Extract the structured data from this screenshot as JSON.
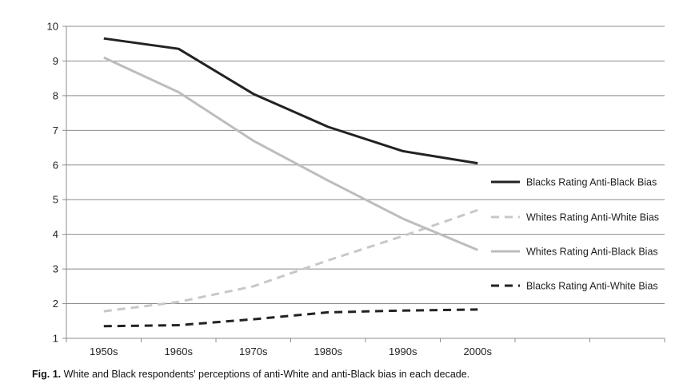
{
  "chart_data": {
    "type": "line",
    "categories": [
      "1950s",
      "1960s",
      "1970s",
      "1980s",
      "1990s",
      "2000s"
    ],
    "extra_x_slots": 2,
    "ylim": [
      1,
      10
    ],
    "yticks": [
      "1",
      "2",
      "3",
      "4",
      "5",
      "6",
      "7",
      "8",
      "9",
      "10"
    ],
    "grid": true,
    "legend_position": "right",
    "series": [
      {
        "name": "Blacks Rating Anti-Black Bias",
        "values": [
          9.65,
          9.35,
          8.05,
          7.1,
          6.4,
          6.05
        ],
        "color": "#222222",
        "dashed": false
      },
      {
        "name": "Whites Rating Anti-White Bias",
        "values": [
          1.78,
          2.05,
          2.5,
          3.25,
          3.95,
          4.7
        ],
        "color": "#c8c8c8",
        "dashed": true
      },
      {
        "name": "Whites Rating Anti-Black Bias",
        "values": [
          9.1,
          8.1,
          6.7,
          5.55,
          4.45,
          3.55
        ],
        "color": "#bdbdbd",
        "dashed": false
      },
      {
        "name": "Blacks Rating Anti-White Bias",
        "values": [
          1.35,
          1.38,
          1.55,
          1.75,
          1.8,
          1.83
        ],
        "color": "#222222",
        "dashed": true
      }
    ]
  },
  "caption": {
    "label": "Fig. 1.",
    "text": "White and Black respondents' perceptions of anti-White and anti-Black bias in each decade."
  }
}
